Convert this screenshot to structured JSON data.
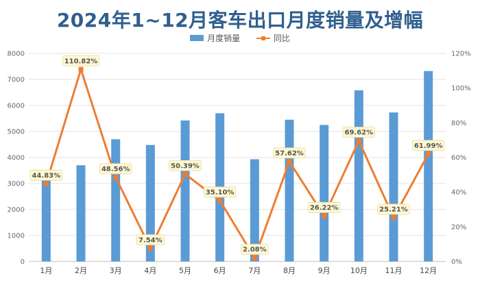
{
  "chart_data": {
    "type": "bar",
    "title": "2024年1~12月客车出口月度销量及增幅",
    "categories": [
      "1月",
      "2月",
      "3月",
      "4月",
      "5月",
      "6月",
      "7月",
      "8月",
      "9月",
      "10月",
      "11月",
      "12月"
    ],
    "series": [
      {
        "name": "月度销量",
        "type": "bar",
        "axis": "left",
        "color": "#5b9bd5",
        "values": [
          3150,
          3700,
          4700,
          4480,
          5420,
          5700,
          3930,
          5450,
          5250,
          6580,
          5730,
          7320
        ]
      },
      {
        "name": "同比",
        "type": "line",
        "axis": "right",
        "color": "#ed7d31",
        "values": [
          44.83,
          110.82,
          48.56,
          7.54,
          50.39,
          35.1,
          2.08,
          57.62,
          26.22,
          69.62,
          25.21,
          61.99
        ],
        "labels": [
          "44.83%",
          "110.82%",
          "48.56%",
          "7.54%",
          "50.39%",
          "35.10%",
          "2.08%",
          "57.62%",
          "26.22%",
          "69.62%",
          "25.21%",
          "61.99%"
        ]
      }
    ],
    "y_left": {
      "ylim": [
        0,
        8000
      ],
      "ticks": [
        "0",
        "1000",
        "2000",
        "3000",
        "4000",
        "5000",
        "6000",
        "7000",
        "8000"
      ]
    },
    "y_right": {
      "ylim": [
        0,
        120
      ],
      "ticks": [
        "0%",
        "20%",
        "40%",
        "60%",
        "80%",
        "100%",
        "120%"
      ]
    },
    "grid": true,
    "legend_position": "top-center"
  }
}
